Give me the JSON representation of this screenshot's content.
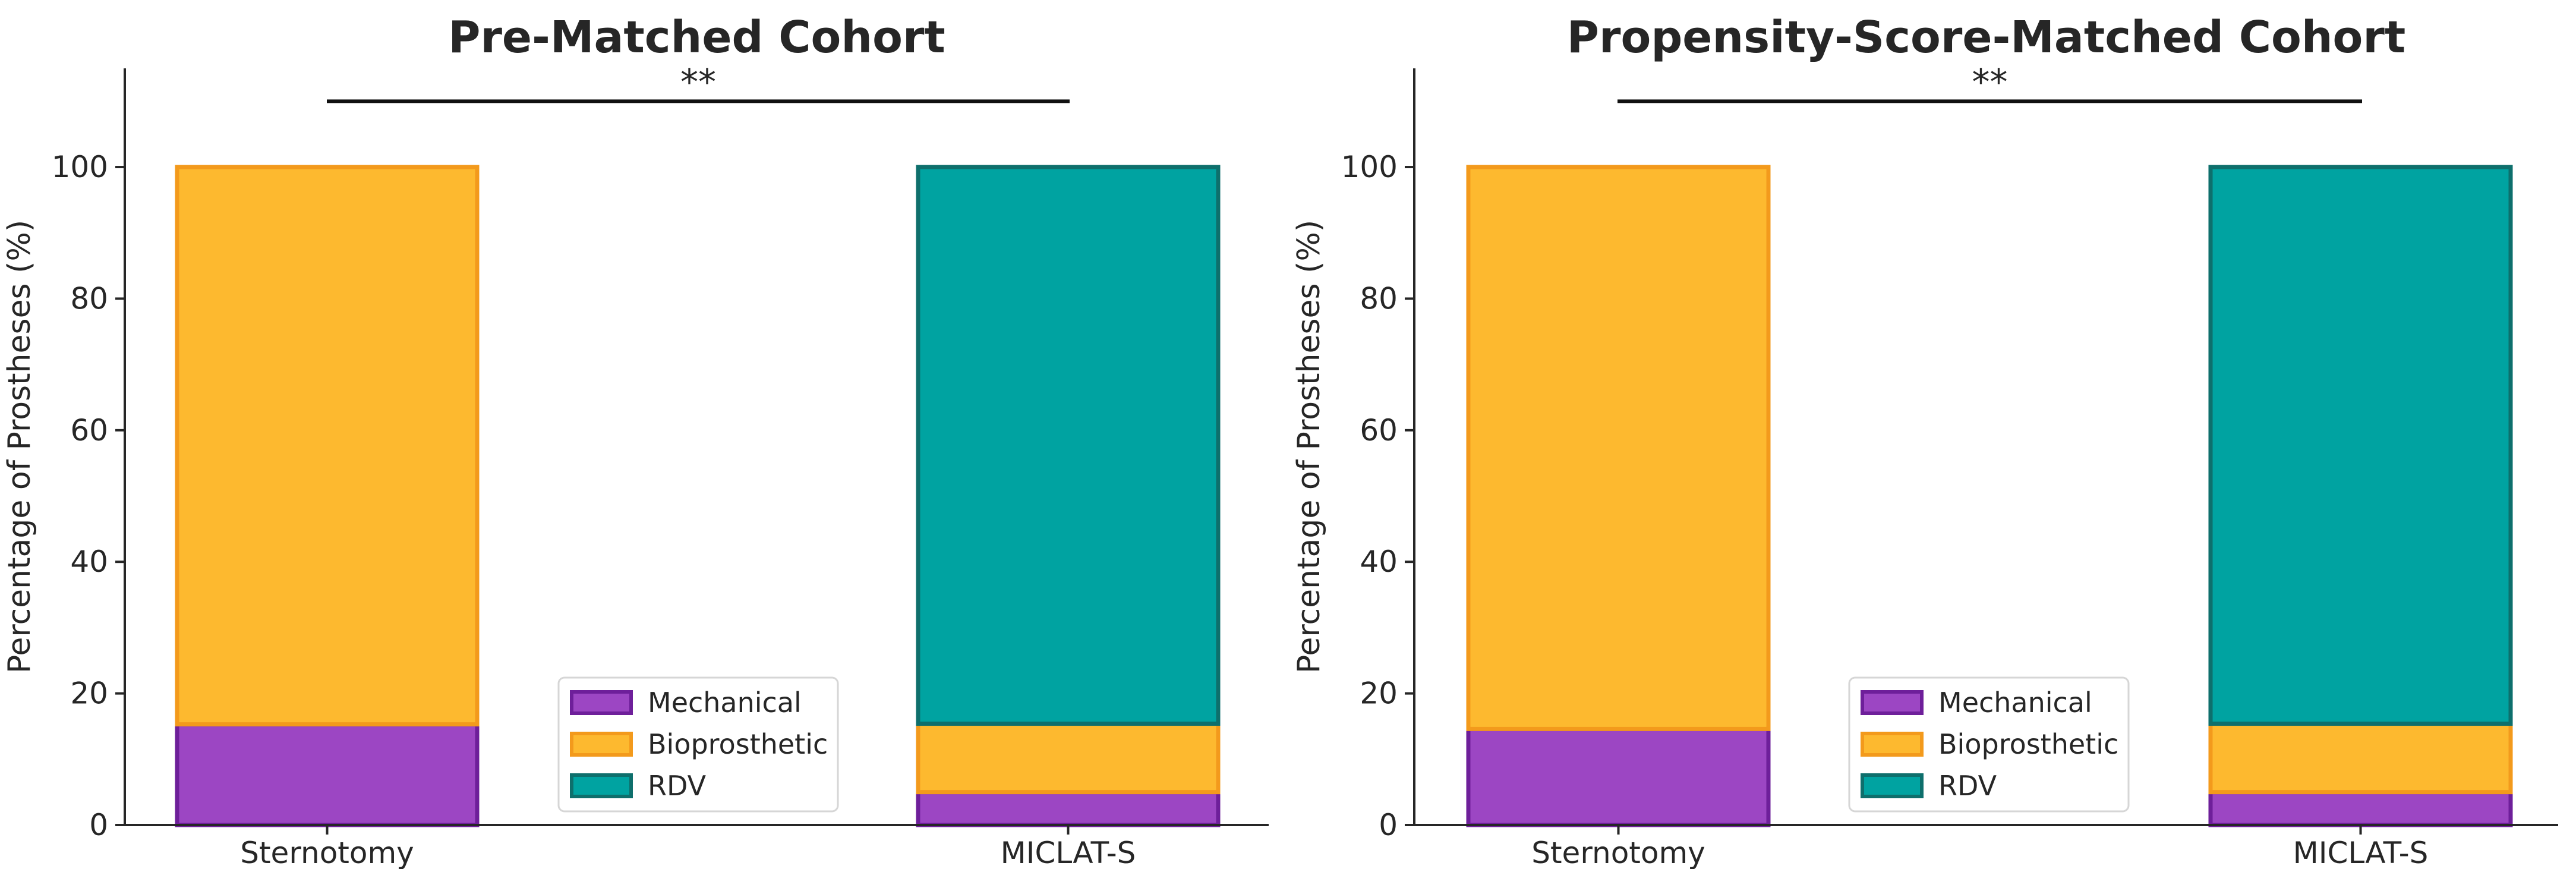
{
  "chart_data": [
    {
      "type": "stacked-bar",
      "title": "Pre-Matched Cohort",
      "xlabel": "",
      "ylabel": "Percentage of Prostheses (%)",
      "ylim": [
        0,
        115
      ],
      "yticks": [
        0,
        20,
        40,
        60,
        80,
        100
      ],
      "categories": [
        "Sternotomy",
        "MICLAT-S"
      ],
      "series": [
        {
          "name": "Mechanical",
          "values": [
            15.3,
            5.0
          ],
          "color": "#9c46c3",
          "edge": "#6e1f9a"
        },
        {
          "name": "Bioprosthetic",
          "values": [
            84.7,
            10.4
          ],
          "color": "#fdb92f",
          "edge": "#f39a1c"
        },
        {
          "name": "RDV",
          "values": [
            0,
            84.6
          ],
          "color": "#00a3a1",
          "edge": "#0e6f6c"
        }
      ],
      "significance": {
        "label": "**",
        "y": 110
      },
      "legend_position": "lower-center"
    },
    {
      "type": "stacked-bar",
      "title": "Propensity-Score-Matched Cohort",
      "xlabel": "",
      "ylabel": "Percentage of Prostheses (%)",
      "ylim": [
        0,
        115
      ],
      "yticks": [
        0,
        20,
        40,
        60,
        80,
        100
      ],
      "categories": [
        "Sternotomy",
        "MICLAT-S"
      ],
      "series": [
        {
          "name": "Mechanical",
          "values": [
            14.6,
            5.0
          ],
          "color": "#9c46c3",
          "edge": "#6e1f9a"
        },
        {
          "name": "Bioprosthetic",
          "values": [
            85.4,
            10.4
          ],
          "color": "#fdb92f",
          "edge": "#f39a1c"
        },
        {
          "name": "RDV",
          "values": [
            0,
            84.6
          ],
          "color": "#00a3a1",
          "edge": "#0e6f6c"
        }
      ],
      "significance": {
        "label": "**",
        "y": 110
      },
      "legend_position": "lower-center"
    }
  ]
}
